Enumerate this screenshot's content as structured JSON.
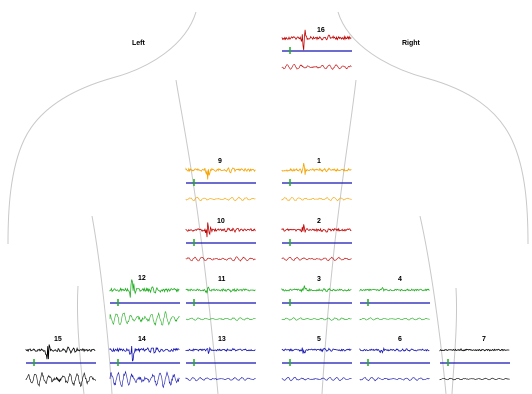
{
  "labels": {
    "left": "Left",
    "right": "Right"
  },
  "colors": {
    "orange": "#f5a300",
    "red": "#c00000",
    "green": "#1fae1f",
    "blue": "#1515b0",
    "black": "#000000",
    "outline": "#c8c8c8"
  },
  "channels": [
    {
      "id": "16",
      "label": "16",
      "color": "red"
    },
    {
      "id": "9",
      "label": "9",
      "color": "orange"
    },
    {
      "id": "1",
      "label": "1",
      "color": "orange"
    },
    {
      "id": "10",
      "label": "10",
      "color": "red"
    },
    {
      "id": "2",
      "label": "2",
      "color": "red"
    },
    {
      "id": "12",
      "label": "12",
      "color": "green"
    },
    {
      "id": "11",
      "label": "11",
      "color": "green"
    },
    {
      "id": "3",
      "label": "3",
      "color": "green"
    },
    {
      "id": "4",
      "label": "4",
      "color": "green"
    },
    {
      "id": "15",
      "label": "15",
      "color": "black"
    },
    {
      "id": "14",
      "label": "14",
      "color": "blue"
    },
    {
      "id": "13",
      "label": "13",
      "color": "blue"
    },
    {
      "id": "5",
      "label": "5",
      "color": "blue"
    },
    {
      "id": "6",
      "label": "6",
      "color": "blue"
    },
    {
      "id": "7",
      "label": "7",
      "color": "black"
    }
  ]
}
